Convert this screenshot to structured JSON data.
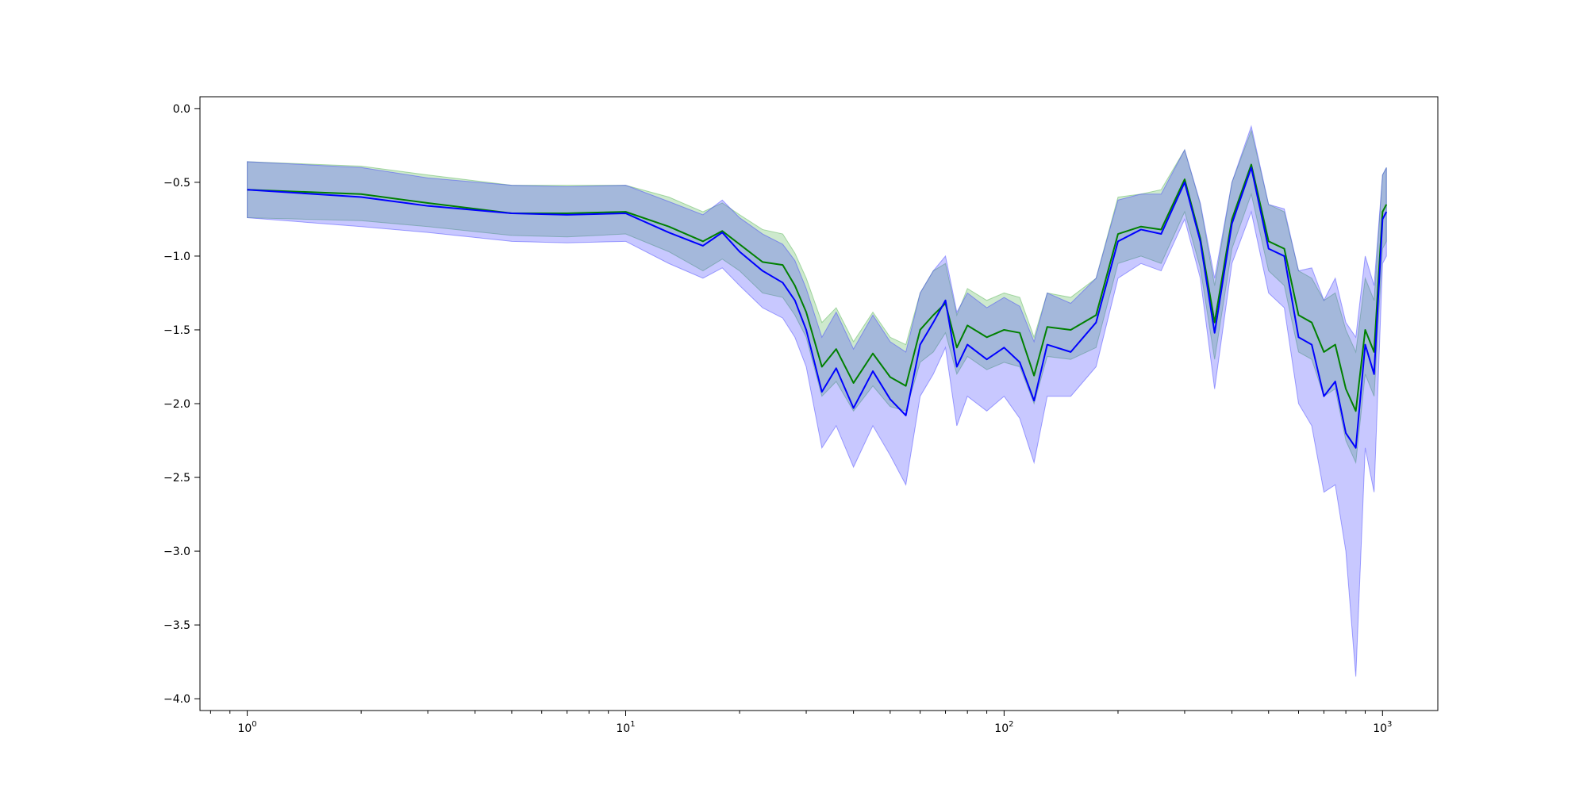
{
  "chart_data": {
    "type": "line",
    "title": "",
    "xlabel": "",
    "ylabel": "",
    "xscale": "log",
    "xlim": [
      0.75,
      1400
    ],
    "ylim": [
      -4.08,
      0.08
    ],
    "grid": false,
    "legend": "none",
    "x_ticks": [
      {
        "value": 1,
        "base": "10",
        "exp": "0"
      },
      {
        "value": 10,
        "base": "10",
        "exp": "1"
      },
      {
        "value": 100,
        "base": "10",
        "exp": "2"
      },
      {
        "value": 1000,
        "base": "10",
        "exp": "3"
      }
    ],
    "y_ticks": [
      {
        "value": 0.0,
        "label": "0.0"
      },
      {
        "value": -0.5,
        "label": "−0.5"
      },
      {
        "value": -1.0,
        "label": "−1.0"
      },
      {
        "value": -1.5,
        "label": "−1.5"
      },
      {
        "value": -2.0,
        "label": "−2.0"
      },
      {
        "value": -2.5,
        "label": "−2.5"
      },
      {
        "value": -3.0,
        "label": "−3.0"
      },
      {
        "value": -3.5,
        "label": "−3.5"
      },
      {
        "value": -4.0,
        "label": "−4.0"
      }
    ],
    "series": [
      {
        "color": "#008000",
        "band_color": "#4daf4a",
        "x": [
          1,
          2,
          3,
          5,
          7,
          10,
          13,
          16,
          18,
          20,
          23,
          26,
          28,
          30,
          33,
          36,
          40,
          45,
          50,
          55,
          60,
          65,
          70,
          75,
          80,
          90,
          100,
          110,
          120,
          130,
          150,
          175,
          200,
          230,
          260,
          300,
          330,
          360,
          400,
          450,
          500,
          550,
          600,
          650,
          700,
          750,
          800,
          850,
          900,
          950,
          1000,
          1024
        ],
        "y": [
          -0.55,
          -0.58,
          -0.64,
          -0.71,
          -0.71,
          -0.7,
          -0.8,
          -0.9,
          -0.83,
          -0.92,
          -1.04,
          -1.06,
          -1.2,
          -1.38,
          -1.75,
          -1.63,
          -1.86,
          -1.66,
          -1.82,
          -1.88,
          -1.5,
          -1.4,
          -1.32,
          -1.62,
          -1.47,
          -1.55,
          -1.5,
          -1.52,
          -1.81,
          -1.48,
          -1.5,
          -1.4,
          -0.85,
          -0.8,
          -0.82,
          -0.48,
          -0.88,
          -1.45,
          -0.75,
          -0.38,
          -0.9,
          -0.95,
          -1.4,
          -1.45,
          -1.65,
          -1.6,
          -1.9,
          -2.05,
          -1.5,
          -1.65,
          -0.7,
          -0.65
        ],
        "lower": [
          -0.74,
          -0.76,
          -0.8,
          -0.86,
          -0.87,
          -0.85,
          -0.97,
          -1.1,
          -1.02,
          -1.1,
          -1.25,
          -1.28,
          -1.4,
          -1.55,
          -1.95,
          -1.85,
          -2.05,
          -1.88,
          -2.02,
          -2.05,
          -1.72,
          -1.65,
          -1.52,
          -1.8,
          -1.68,
          -1.77,
          -1.72,
          -1.75,
          -2.0,
          -1.68,
          -1.7,
          -1.62,
          -1.05,
          -1.0,
          -1.05,
          -0.7,
          -1.08,
          -1.7,
          -0.95,
          -0.58,
          -1.1,
          -1.2,
          -1.65,
          -1.7,
          -1.95,
          -1.9,
          -2.25,
          -2.4,
          -1.8,
          -1.95,
          -0.95,
          -0.9
        ],
        "upper": [
          -0.36,
          -0.39,
          -0.45,
          -0.52,
          -0.52,
          -0.52,
          -0.6,
          -0.7,
          -0.64,
          -0.72,
          -0.82,
          -0.85,
          -0.98,
          -1.15,
          -1.45,
          -1.35,
          -1.58,
          -1.38,
          -1.55,
          -1.6,
          -1.25,
          -1.1,
          -1.05,
          -1.4,
          -1.22,
          -1.3,
          -1.25,
          -1.28,
          -1.55,
          -1.25,
          -1.28,
          -1.15,
          -0.6,
          -0.58,
          -0.55,
          -0.28,
          -0.65,
          -1.2,
          -0.5,
          -0.15,
          -0.65,
          -0.7,
          -1.1,
          -1.15,
          -1.3,
          -1.25,
          -1.5,
          -1.65,
          -1.15,
          -1.3,
          -0.45,
          -0.4
        ]
      },
      {
        "color": "#0000ff",
        "band_color": "#3b3bff",
        "x": [
          1,
          2,
          3,
          5,
          7,
          10,
          13,
          16,
          18,
          20,
          23,
          26,
          28,
          30,
          33,
          36,
          40,
          45,
          50,
          55,
          60,
          65,
          70,
          75,
          80,
          90,
          100,
          110,
          120,
          130,
          150,
          175,
          200,
          230,
          260,
          300,
          330,
          360,
          400,
          450,
          500,
          550,
          600,
          650,
          700,
          750,
          800,
          850,
          900,
          950,
          1000,
          1024
        ],
        "y": [
          -0.55,
          -0.6,
          -0.66,
          -0.71,
          -0.72,
          -0.71,
          -0.84,
          -0.93,
          -0.84,
          -0.97,
          -1.1,
          -1.18,
          -1.3,
          -1.5,
          -1.92,
          -1.76,
          -2.03,
          -1.78,
          -1.97,
          -2.08,
          -1.6,
          -1.45,
          -1.3,
          -1.75,
          -1.6,
          -1.7,
          -1.62,
          -1.72,
          -1.98,
          -1.6,
          -1.65,
          -1.45,
          -0.9,
          -0.82,
          -0.85,
          -0.5,
          -0.9,
          -1.52,
          -0.78,
          -0.4,
          -0.95,
          -1.0,
          -1.55,
          -1.6,
          -1.95,
          -1.85,
          -2.2,
          -2.3,
          -1.6,
          -1.8,
          -0.75,
          -0.7
        ],
        "lower": [
          -0.74,
          -0.8,
          -0.84,
          -0.9,
          -0.91,
          -0.9,
          -1.05,
          -1.15,
          -1.08,
          -1.2,
          -1.35,
          -1.42,
          -1.55,
          -1.75,
          -2.3,
          -2.15,
          -2.43,
          -2.15,
          -2.35,
          -2.55,
          -1.95,
          -1.8,
          -1.62,
          -2.15,
          -1.95,
          -2.05,
          -1.95,
          -2.1,
          -2.4,
          -1.95,
          -1.95,
          -1.75,
          -1.15,
          -1.05,
          -1.1,
          -0.75,
          -1.15,
          -1.9,
          -1.05,
          -0.7,
          -1.25,
          -1.35,
          -2.0,
          -2.15,
          -2.6,
          -2.55,
          -3.0,
          -3.85,
          -2.3,
          -2.6,
          -1.05,
          -1.0
        ],
        "upper": [
          -0.36,
          -0.4,
          -0.47,
          -0.52,
          -0.53,
          -0.52,
          -0.63,
          -0.72,
          -0.62,
          -0.74,
          -0.85,
          -0.92,
          -1.03,
          -1.22,
          -1.55,
          -1.38,
          -1.63,
          -1.4,
          -1.58,
          -1.65,
          -1.25,
          -1.1,
          -1.0,
          -1.38,
          -1.25,
          -1.35,
          -1.28,
          -1.34,
          -1.58,
          -1.25,
          -1.32,
          -1.15,
          -0.62,
          -0.58,
          -0.58,
          -0.28,
          -0.64,
          -1.15,
          -0.5,
          -0.12,
          -0.65,
          -0.68,
          -1.1,
          -1.08,
          -1.3,
          -1.15,
          -1.45,
          -1.55,
          -1.0,
          -1.2,
          -0.45,
          -0.4
        ]
      }
    ]
  }
}
